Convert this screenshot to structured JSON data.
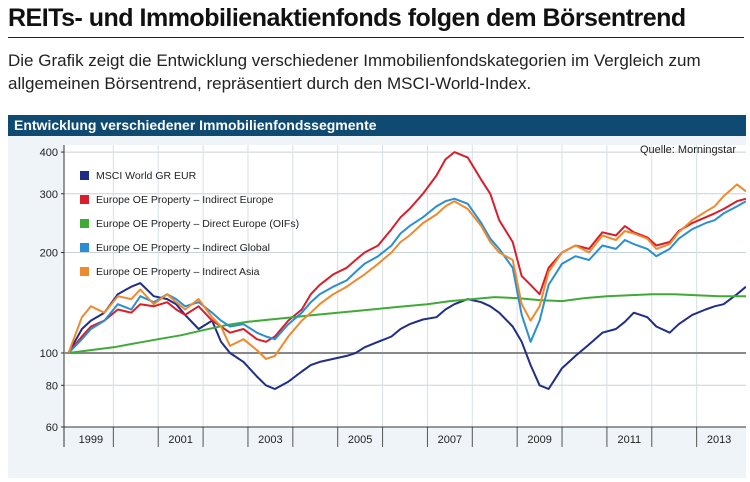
{
  "headline": "REITs- und Immobilienaktienfonds folgen dem Börsentrend",
  "subtitle": "Die Grafik zeigt die Entwicklung verschiedener Immobilienfondskategorien im Vergleich zum allgemeinen Börsentrend, repräsentiert durch den MSCI-World-Index.",
  "chart_data": {
    "type": "line",
    "title": "Entwicklung verschiedener Immobilienfondssegmente",
    "source": "Quelle: Morningstar",
    "xlabel": "",
    "ylabel": "",
    "xlim": [
      1998.4,
      2013.6
    ],
    "ylim": [
      60,
      420
    ],
    "yscale": "log",
    "y_ticks": [
      60,
      80,
      100,
      200,
      300,
      400
    ],
    "x_tick_labels": [
      "1999",
      "2001",
      "2003",
      "2005",
      "2007",
      "2009",
      "2011",
      "2013"
    ],
    "x_tick_positions": [
      1999,
      2001,
      2003,
      2005,
      2007,
      2009,
      2011,
      2013
    ],
    "x_year_boundaries": [
      1999.5,
      2000.5,
      2001.5,
      2002.5,
      2003.5,
      2004.5,
      2005.5,
      2006.5,
      2007.5,
      2008.5,
      2009.5,
      2010.5,
      2011.5,
      2012.5
    ],
    "reference_line": 100,
    "grid": true,
    "legend_position": "top-left",
    "series": [
      {
        "name": "MSCI World GR EUR",
        "color": "#1f2e86",
        "x": [
          1998.5,
          1998.8,
          1999.0,
          1999.3,
          1999.6,
          1999.9,
          2000.1,
          2000.4,
          2000.7,
          2000.9,
          2001.1,
          2001.4,
          2001.7,
          2001.9,
          2002.1,
          2002.4,
          2002.7,
          2002.9,
          2003.1,
          2003.4,
          2003.7,
          2003.9,
          2004.1,
          2004.4,
          2004.7,
          2004.9,
          2005.1,
          2005.4,
          2005.7,
          2005.9,
          2006.1,
          2006.4,
          2006.7,
          2006.9,
          2007.1,
          2007.4,
          2007.7,
          2007.9,
          2008.1,
          2008.4,
          2008.6,
          2008.8,
          2009.0,
          2009.2,
          2009.5,
          2009.8,
          2010.1,
          2010.4,
          2010.7,
          2010.9,
          2011.1,
          2011.4,
          2011.6,
          2011.9,
          2012.1,
          2012.4,
          2012.7,
          2012.9,
          2013.1,
          2013.4,
          2013.6
        ],
        "y": [
          100,
          118,
          125,
          132,
          150,
          158,
          162,
          148,
          145,
          140,
          130,
          118,
          125,
          108,
          100,
          94,
          85,
          80,
          78,
          82,
          88,
          92,
          94,
          96,
          98,
          100,
          104,
          108,
          112,
          118,
          122,
          126,
          128,
          135,
          140,
          145,
          142,
          138,
          132,
          120,
          108,
          92,
          80,
          78,
          90,
          98,
          106,
          115,
          118,
          124,
          132,
          128,
          120,
          115,
          122,
          130,
          135,
          138,
          140,
          150,
          158
        ]
      },
      {
        "name": "Europe OE Property – Indirect Europe",
        "color": "#d81e2a",
        "x": [
          1998.5,
          1998.8,
          1999.0,
          1999.3,
          1999.6,
          1999.9,
          2000.1,
          2000.4,
          2000.7,
          2000.9,
          2001.1,
          2001.4,
          2001.7,
          2001.9,
          2002.1,
          2002.4,
          2002.7,
          2002.9,
          2003.1,
          2003.4,
          2003.7,
          2003.9,
          2004.1,
          2004.4,
          2004.7,
          2004.9,
          2005.1,
          2005.4,
          2005.7,
          2005.9,
          2006.1,
          2006.4,
          2006.7,
          2006.9,
          2007.1,
          2007.4,
          2007.7,
          2007.9,
          2008.1,
          2008.4,
          2008.6,
          2008.8,
          2009.0,
          2009.2,
          2009.5,
          2009.8,
          2010.1,
          2010.4,
          2010.7,
          2010.9,
          2011.1,
          2011.4,
          2011.6,
          2011.9,
          2012.1,
          2012.4,
          2012.7,
          2012.9,
          2013.1,
          2013.4,
          2013.6
        ],
        "y": [
          100,
          112,
          120,
          125,
          135,
          132,
          140,
          138,
          142,
          135,
          130,
          138,
          125,
          120,
          115,
          118,
          110,
          108,
          112,
          125,
          135,
          150,
          160,
          172,
          180,
          190,
          200,
          210,
          235,
          255,
          270,
          300,
          340,
          380,
          400,
          385,
          330,
          300,
          250,
          215,
          170,
          160,
          150,
          180,
          200,
          210,
          205,
          230,
          225,
          240,
          230,
          222,
          210,
          215,
          232,
          245,
          255,
          262,
          270,
          285,
          290
        ]
      },
      {
        "name": "Europe OE Property – Direct Europe (OIFs)",
        "color": "#3faa35",
        "x": [
          1998.5,
          1999.0,
          1999.5,
          2000.0,
          2000.5,
          2001.0,
          2001.5,
          2002.0,
          2002.5,
          2003.0,
          2003.5,
          2004.0,
          2004.5,
          2005.0,
          2005.5,
          2006.0,
          2006.5,
          2007.0,
          2007.5,
          2008.0,
          2008.5,
          2009.0,
          2009.5,
          2010.0,
          2010.5,
          2011.0,
          2011.5,
          2012.0,
          2012.5,
          2013.0,
          2013.6
        ],
        "y": [
          100,
          102,
          104,
          107,
          110,
          113,
          117,
          121,
          124,
          126,
          128,
          130,
          132,
          134,
          136,
          138,
          140,
          143,
          145,
          147,
          146,
          144,
          143,
          146,
          148,
          149,
          150,
          150,
          149,
          148,
          148
        ]
      },
      {
        "name": "Europe OE Property – Indirect Global",
        "color": "#2a8fd0",
        "x": [
          1998.5,
          1998.8,
          1999.0,
          1999.3,
          1999.6,
          1999.9,
          2000.1,
          2000.4,
          2000.7,
          2000.9,
          2001.1,
          2001.4,
          2001.7,
          2001.9,
          2002.1,
          2002.4,
          2002.7,
          2002.9,
          2003.1,
          2003.4,
          2003.7,
          2003.9,
          2004.1,
          2004.4,
          2004.7,
          2004.9,
          2005.1,
          2005.4,
          2005.7,
          2005.9,
          2006.1,
          2006.4,
          2006.7,
          2006.9,
          2007.1,
          2007.4,
          2007.7,
          2007.9,
          2008.1,
          2008.4,
          2008.6,
          2008.8,
          2009.0,
          2009.2,
          2009.5,
          2009.8,
          2010.1,
          2010.4,
          2010.7,
          2010.9,
          2011.1,
          2011.4,
          2011.6,
          2011.9,
          2012.1,
          2012.4,
          2012.7,
          2012.9,
          2013.1,
          2013.4,
          2013.6
        ],
        "y": [
          100,
          110,
          118,
          125,
          140,
          135,
          148,
          142,
          150,
          145,
          138,
          142,
          132,
          125,
          120,
          122,
          115,
          112,
          110,
          122,
          132,
          142,
          150,
          158,
          165,
          175,
          185,
          195,
          210,
          228,
          240,
          255,
          275,
          285,
          290,
          280,
          245,
          220,
          205,
          180,
          130,
          108,
          125,
          160,
          185,
          195,
          190,
          210,
          205,
          218,
          212,
          205,
          195,
          205,
          220,
          235,
          245,
          250,
          262,
          275,
          285
        ]
      },
      {
        "name": "Europe OE Property – Indirect Asia",
        "color": "#ee8a2e",
        "x": [
          1998.5,
          1998.8,
          1999.0,
          1999.3,
          1999.6,
          1999.9,
          2000.1,
          2000.4,
          2000.7,
          2000.9,
          2001.1,
          2001.4,
          2001.7,
          2001.9,
          2002.1,
          2002.4,
          2002.7,
          2002.9,
          2003.1,
          2003.4,
          2003.7,
          2003.9,
          2004.1,
          2004.4,
          2004.7,
          2004.9,
          2005.1,
          2005.4,
          2005.7,
          2005.9,
          2006.1,
          2006.4,
          2006.7,
          2006.9,
          2007.1,
          2007.4,
          2007.7,
          2007.9,
          2008.1,
          2008.4,
          2008.6,
          2008.8,
          2009.0,
          2009.2,
          2009.5,
          2009.8,
          2010.1,
          2010.4,
          2010.7,
          2010.9,
          2011.1,
          2011.4,
          2011.6,
          2011.9,
          2012.1,
          2012.4,
          2012.7,
          2012.9,
          2013.1,
          2013.4,
          2013.6
        ],
        "y": [
          100,
          128,
          138,
          132,
          148,
          145,
          155,
          140,
          150,
          142,
          135,
          145,
          128,
          120,
          105,
          110,
          102,
          96,
          98,
          112,
          125,
          132,
          140,
          150,
          158,
          165,
          172,
          185,
          200,
          215,
          225,
          245,
          260,
          275,
          285,
          270,
          240,
          215,
          200,
          190,
          140,
          125,
          138,
          175,
          200,
          210,
          200,
          225,
          218,
          232,
          228,
          220,
          205,
          212,
          230,
          250,
          265,
          275,
          295,
          320,
          305
        ]
      }
    ]
  }
}
